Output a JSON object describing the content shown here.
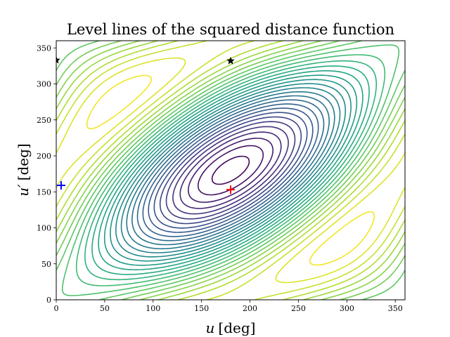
{
  "chart_data": {
    "type": "contour",
    "title": "Level lines of the squared distance function",
    "xlabel_var": "u",
    "xlabel_unit": "[deg]",
    "ylabel_var": "u′",
    "ylabel_unit": "[deg]",
    "xlim": [
      0,
      360
    ],
    "ylim": [
      0,
      360
    ],
    "xticks": [
      0,
      50,
      100,
      150,
      200,
      250,
      300,
      350
    ],
    "yticks": [
      0,
      50,
      100,
      150,
      200,
      250,
      300,
      350
    ],
    "grid": false,
    "colormap": "viridis",
    "level_count": 30,
    "markers": [
      {
        "symbol": "plus",
        "color": "#ff0000",
        "x": 180,
        "y": 153
      },
      {
        "symbol": "plus",
        "color": "#0000ff",
        "x": 5,
        "y": 159
      },
      {
        "symbol": "star",
        "color": "#000000",
        "x": 180,
        "y": 332
      },
      {
        "symbol": "star",
        "color": "#000000",
        "x": 0,
        "y": 333
      }
    ]
  }
}
